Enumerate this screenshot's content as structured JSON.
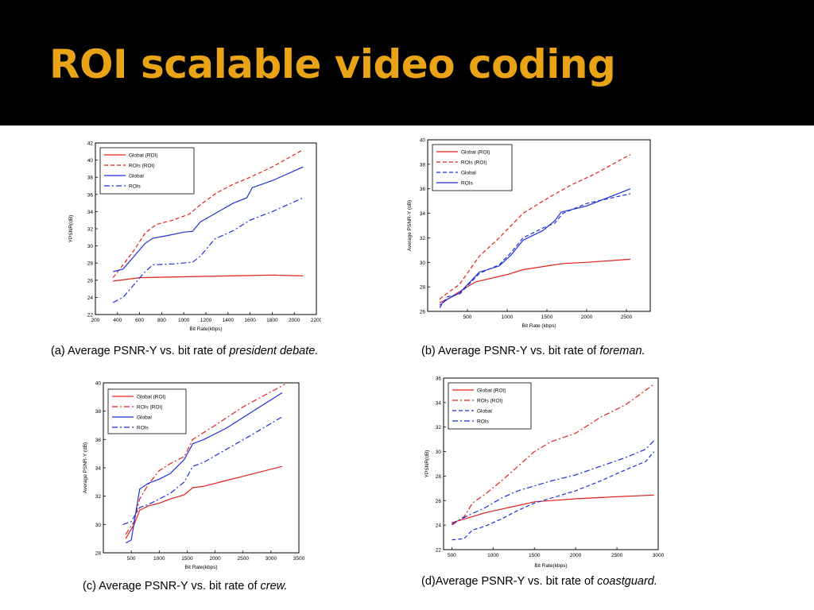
{
  "slide": {
    "title": "ROI scalable video coding",
    "accent_color": "#e8a317"
  },
  "captions": [
    {
      "prefix": "(a) Average PSNR-Y vs. bit rate of ",
      "name": "president debate."
    },
    {
      "prefix": "(b) Average PSNR-Y vs. bit rate of ",
      "name": "foreman."
    },
    {
      "prefix": "(c) Average PSNR-Y vs. bit rate of ",
      "name": "crew."
    },
    {
      "prefix": "(d)Average PSNR-Y vs. bit rate of ",
      "name": "coastguard."
    }
  ],
  "chart_data": [
    {
      "type": "line",
      "xlabel": "Bit Rate(kbps)",
      "ylabel": "YPSNR(dB)",
      "xlim": [
        200,
        2200
      ],
      "ylim": [
        22,
        42
      ],
      "xticks": [
        200,
        400,
        600,
        800,
        1000,
        1200,
        1400,
        1600,
        1800,
        2000,
        2200
      ],
      "yticks": [
        22,
        24,
        26,
        28,
        30,
        32,
        34,
        36,
        38,
        40,
        42
      ],
      "legend_position": "top-left",
      "series": [
        {
          "name": "Global (ROI)",
          "color": "#e0201c",
          "dash": "solid",
          "x": [
            360,
            600,
            800,
            1000,
            1200,
            1400,
            1600,
            1800,
            2080
          ],
          "y": [
            25.9,
            26.3,
            26.35,
            26.4,
            26.45,
            26.5,
            26.55,
            26.6,
            26.5
          ]
        },
        {
          "name": "ROIs (ROI)",
          "color": "#e0201c",
          "dash": "dashed",
          "x": [
            360,
            450,
            550,
            650,
            750,
            900,
            1050,
            1150,
            1300,
            1450,
            1600,
            1800,
            2080
          ],
          "y": [
            26.3,
            27.8,
            29.5,
            31.5,
            32.5,
            33.0,
            33.7,
            34.8,
            36.2,
            37.2,
            38.0,
            39.2,
            41.2
          ]
        },
        {
          "name": "Global",
          "color": "#1e2fd8",
          "dash": "solid",
          "x": [
            360,
            450,
            550,
            650,
            720,
            850,
            1000,
            1080,
            1150,
            1300,
            1450,
            1570,
            1620,
            1800,
            2080
          ],
          "y": [
            27.0,
            27.3,
            28.8,
            30.3,
            30.9,
            31.2,
            31.6,
            31.7,
            32.8,
            33.9,
            35.0,
            35.6,
            36.8,
            37.6,
            39.2
          ]
        },
        {
          "name": "ROIs",
          "color": "#1e2fd8",
          "dash": "dashdot",
          "x": [
            360,
            450,
            550,
            650,
            720,
            900,
            1080,
            1150,
            1280,
            1450,
            1600,
            1800,
            2080
          ],
          "y": [
            23.4,
            24.0,
            25.5,
            27.0,
            27.8,
            27.9,
            28.1,
            28.8,
            30.8,
            31.8,
            33.0,
            34.0,
            35.6
          ]
        }
      ]
    },
    {
      "type": "line",
      "xlabel": "Bit Rate (kbps)",
      "ylabel": "Average PSNR-Y (dB)",
      "xlim": [
        0,
        2800
      ],
      "ylim": [
        26,
        40
      ],
      "xticks": [
        500,
        1000,
        1500,
        2000,
        2500
      ],
      "yticks": [
        26,
        28,
        30,
        32,
        34,
        36,
        38,
        40
      ],
      "legend_position": "top-left",
      "series": [
        {
          "name": "Global (ROI)",
          "color": "#e0201c",
          "dash": "solid",
          "x": [
            150,
            250,
            400,
            600,
            800,
            1000,
            1200,
            1500,
            1700,
            2000,
            2550
          ],
          "y": [
            26.7,
            27.0,
            27.6,
            28.4,
            28.7,
            29.0,
            29.4,
            29.7,
            29.9,
            30.0,
            30.25
          ]
        },
        {
          "name": "ROIs (ROI)",
          "color": "#e0201c",
          "dash": "dashed",
          "x": [
            150,
            250,
            400,
            650,
            900,
            1200,
            1500,
            1800,
            2100,
            2550
          ],
          "y": [
            27.0,
            27.5,
            28.2,
            30.5,
            32.0,
            34.0,
            35.2,
            36.3,
            37.2,
            38.8
          ]
        },
        {
          "name": "Global",
          "color": "#1e2fd8",
          "dash": "dashed",
          "x": [
            150,
            250,
            400,
            650,
            900,
            1050,
            1200,
            1450,
            1600,
            1700,
            2000,
            2550
          ],
          "y": [
            26.3,
            27.2,
            27.4,
            29.1,
            29.8,
            30.8,
            32.0,
            32.8,
            33.2,
            34.0,
            34.8,
            35.6
          ]
        },
        {
          "name": "ROIs",
          "color": "#1e2fd8",
          "dash": "solid",
          "x": [
            150,
            250,
            400,
            650,
            900,
            1050,
            1200,
            1450,
            1600,
            1680,
            2000,
            2550
          ],
          "y": [
            26.5,
            27.0,
            27.5,
            29.2,
            29.7,
            30.6,
            31.8,
            32.6,
            33.4,
            34.1,
            34.6,
            36.0
          ]
        }
      ]
    },
    {
      "type": "line",
      "xlabel": "Bit Rate(kbps)",
      "ylabel": "Average PSNR-Y (dB)",
      "xlim": [
        0,
        3500
      ],
      "ylim": [
        28,
        40
      ],
      "xticks": [
        500,
        1000,
        1500,
        2000,
        2500,
        3000,
        3500
      ],
      "yticks": [
        28,
        30,
        32,
        34,
        36,
        38,
        40
      ],
      "legend_position": "top-left",
      "series": [
        {
          "name": "Global (ROI)",
          "color": "#e0201c",
          "dash": "solid",
          "x": [
            400,
            550,
            650,
            800,
            1000,
            1200,
            1450,
            1600,
            1800,
            2200,
            2600,
            3200
          ],
          "y": [
            29.0,
            30.0,
            31.0,
            31.3,
            31.5,
            31.8,
            32.1,
            32.6,
            32.7,
            33.1,
            33.5,
            34.1
          ]
        },
        {
          "name": "ROIs (ROI)",
          "color": "#e0201c",
          "dash": "dashdot",
          "x": [
            400,
            550,
            650,
            800,
            1000,
            1200,
            1450,
            1600,
            2000,
            2500,
            3250
          ],
          "y": [
            29.3,
            30.2,
            31.8,
            32.8,
            33.8,
            34.3,
            34.8,
            36.0,
            37.0,
            38.3,
            39.9
          ]
        },
        {
          "name": "Global",
          "color": "#1e2fd8",
          "dash": "solid",
          "x": [
            400,
            500,
            650,
            800,
            1000,
            1200,
            1450,
            1600,
            1800,
            2200,
            2600,
            3200
          ],
          "y": [
            28.7,
            28.9,
            32.5,
            32.9,
            33.2,
            33.6,
            34.6,
            35.7,
            36.0,
            36.8,
            37.8,
            39.3
          ]
        },
        {
          "name": "ROIs",
          "color": "#1e2fd8",
          "dash": "dashdot",
          "x": [
            350,
            500,
            650,
            800,
            1000,
            1200,
            1450,
            1600,
            1800,
            2200,
            2600,
            3200
          ],
          "y": [
            30.0,
            30.2,
            31.2,
            31.4,
            31.8,
            32.2,
            33.0,
            34.1,
            34.4,
            35.3,
            36.2,
            37.6
          ]
        }
      ]
    },
    {
      "type": "line",
      "xlabel": "Bit Rate(kbps)",
      "ylabel": "YPSNR(dB)",
      "xlim": [
        400,
        3000
      ],
      "ylim": [
        22,
        36
      ],
      "xticks": [
        500,
        1000,
        1500,
        2000,
        2500,
        3000
      ],
      "yticks": [
        22,
        24,
        26,
        28,
        30,
        32,
        34,
        36
      ],
      "legend_position": "top-left",
      "series": [
        {
          "name": "Global (ROI)",
          "color": "#e0201c",
          "dash": "solid",
          "x": [
            500,
            700,
            900,
            1100,
            1300,
            1500,
            1700,
            2000,
            2300,
            2600,
            2950
          ],
          "y": [
            24.2,
            24.6,
            25.0,
            25.3,
            25.6,
            25.9,
            26.0,
            26.15,
            26.25,
            26.35,
            26.45
          ]
        },
        {
          "name": "ROIs (ROI)",
          "color": "#e0201c",
          "dash": "dashdot",
          "x": [
            500,
            650,
            750,
            900,
            1100,
            1300,
            1500,
            1700,
            2000,
            2300,
            2600,
            2950
          ],
          "y": [
            24.0,
            24.7,
            25.8,
            26.5,
            27.6,
            28.8,
            30.0,
            30.8,
            31.5,
            32.8,
            33.8,
            35.5
          ]
        },
        {
          "name": "Global",
          "color": "#1e2fd8",
          "dash": "dashed",
          "x": [
            500,
            650,
            750,
            900,
            1100,
            1300,
            1500,
            1700,
            2000,
            2300,
            2600,
            2850,
            2950
          ],
          "y": [
            22.8,
            22.9,
            23.6,
            23.9,
            24.5,
            25.2,
            25.8,
            26.2,
            26.8,
            27.6,
            28.5,
            29.2,
            30.0
          ]
        },
        {
          "name": "ROIs",
          "color": "#1e2fd8",
          "dash": "dashdot",
          "x": [
            500,
            700,
            900,
            1100,
            1300,
            1500,
            1700,
            2000,
            2300,
            2600,
            2850,
            2950
          ],
          "y": [
            24.1,
            24.8,
            25.4,
            26.2,
            26.8,
            27.2,
            27.6,
            28.1,
            28.8,
            29.5,
            30.2,
            30.9
          ]
        }
      ]
    }
  ]
}
